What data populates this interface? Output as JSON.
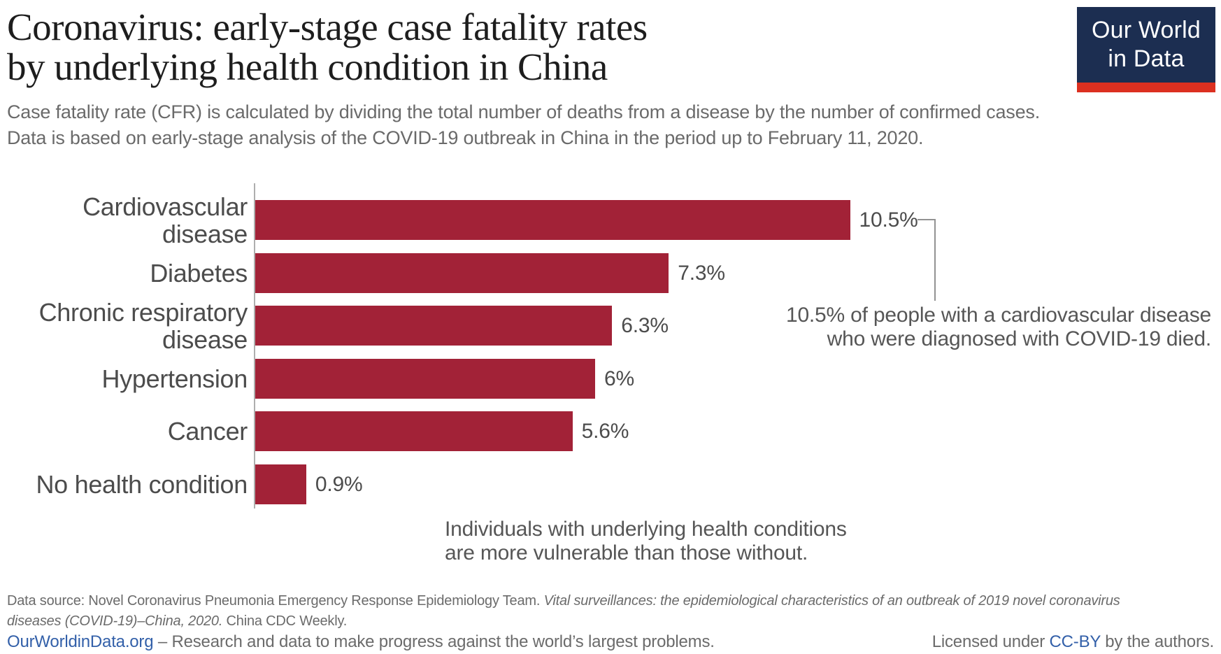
{
  "header": {
    "title_line1": "Coronavirus: early-stage case fatality rates",
    "title_line2": "by underlying health condition in China",
    "subtitle_line1": "Case fatality rate (CFR) is calculated by dividing the total number of deaths from a disease by the number of confirmed cases.",
    "subtitle_line2": "Data is based on early-stage analysis of the COVID-19 outbreak in China in the period up to February 11, 2020."
  },
  "logo": {
    "line1": "Our World",
    "line2": "in Data",
    "background_color": "#1c2e51",
    "accent_color": "#dc3020"
  },
  "chart_data": {
    "type": "bar",
    "orientation": "horizontal",
    "categories": [
      "Cardiovascular disease",
      "Diabetes",
      "Chronic respiratory disease",
      "Hypertension",
      "Cancer",
      "No health condition"
    ],
    "category_lines": [
      [
        "Cardiovascular",
        "disease"
      ],
      [
        "Diabetes"
      ],
      [
        "Chronic respiratory",
        "disease"
      ],
      [
        "Hypertension"
      ],
      [
        "Cancer"
      ],
      [
        "No health condition"
      ]
    ],
    "values": [
      10.5,
      7.3,
      6.3,
      6,
      5.6,
      0.9
    ],
    "value_labels": [
      "10.5%",
      "7.3%",
      "6.3%",
      "6%",
      "5.6%",
      "0.9%"
    ],
    "unit": "%",
    "xlim": [
      0,
      12
    ],
    "bar_color": "#a22237",
    "axis_color": "#aeaeae",
    "grid": false,
    "legend": "none"
  },
  "annotations": {
    "callout_line1": "10.5% of people with a cardiovascular disease",
    "callout_line2": "who were diagnosed with COVID-19 died.",
    "note_line1": "Individuals with underlying health conditions",
    "note_line2": "are more vulnerable than those without."
  },
  "footer": {
    "source_line1_regular": "Data source: Novel Coronavirus Pneumonia Emergency Response Epidemiology Team. ",
    "source_line1_italic": "Vital surveillances: the epidemiological characteristics of an outbreak of 2019 novel coronavirus",
    "source_line2_italic": "diseases (COVID-19)–China, 2020.",
    "source_line2_regular": " China CDC Weekly.",
    "owid_link": "OurWorldinData.org",
    "tagline": " – Research and data to make progress against the world’s largest problems.",
    "license_prefix": "Licensed under ",
    "license_link": "CC-BY",
    "license_suffix": " by the authors.",
    "link_color": "#3360a9"
  }
}
